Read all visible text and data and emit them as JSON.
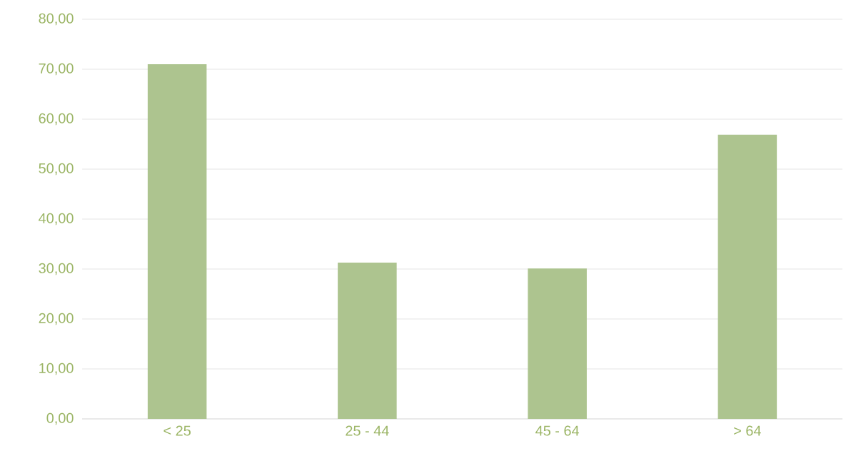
{
  "chart_data": {
    "type": "bar",
    "categories": [
      "< 25",
      "25 - 44",
      "45 - 64",
      "> 64"
    ],
    "values": [
      71.0,
      31.3,
      30.1,
      56.9
    ],
    "color": "#adc48f",
    "ylim": [
      0,
      80
    ],
    "yticks": [
      {
        "value": 0,
        "label": "0,00"
      },
      {
        "value": 10,
        "label": "10,00"
      },
      {
        "value": 20,
        "label": "20,00"
      },
      {
        "value": 30,
        "label": "30,00"
      },
      {
        "value": 40,
        "label": "40,00"
      },
      {
        "value": 50,
        "label": "50,00"
      },
      {
        "value": 60,
        "label": "60,00"
      },
      {
        "value": 70,
        "label": "70,00"
      },
      {
        "value": 80,
        "label": "80,00"
      }
    ],
    "grid": "y"
  }
}
